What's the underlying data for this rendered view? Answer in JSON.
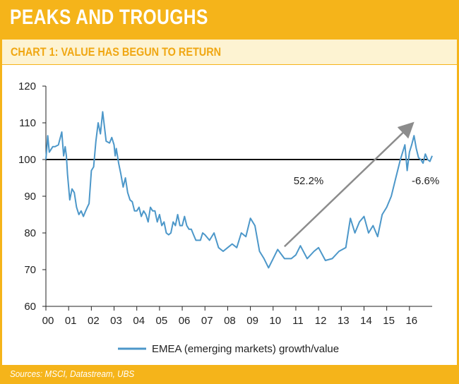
{
  "header": {
    "title": "PEAKS AND TROUGHS"
  },
  "subheader": {
    "title": "CHART 1: VALUE HAS BEGUN TO RETURN"
  },
  "footer": {
    "source": "Sources: MSCI, Datastream, UBS"
  },
  "colors": {
    "accent": "#f5b41a",
    "subheader_bg": "#fdf3d2",
    "subtitle": "#f0a712",
    "series": "#4c97c9",
    "arrow": "#8c8c8c",
    "reference": "#111111"
  },
  "chart_data": {
    "type": "line",
    "title": "CHART 1: VALUE HAS BEGUN TO RETURN",
    "xlabel": "",
    "ylabel": "",
    "xlim": [
      0,
      17
    ],
    "ylim": [
      60,
      120
    ],
    "x_ticks": [
      0,
      1,
      2,
      3,
      4,
      5,
      6,
      7,
      8,
      9,
      10,
      11,
      12,
      13,
      14,
      15,
      16
    ],
    "x_tick_labels": [
      "00",
      "01",
      "02",
      "03",
      "04",
      "05",
      "06",
      "07",
      "08",
      "09",
      "10",
      "11",
      "12",
      "13",
      "14",
      "15",
      "16"
    ],
    "y_ticks": [
      60,
      70,
      80,
      90,
      100,
      110,
      120
    ],
    "y_tick_labels": [
      "60",
      "70",
      "80",
      "90",
      "100",
      "110",
      "120"
    ],
    "grid": false,
    "reference_line": {
      "y": 100
    },
    "legend": {
      "position": "bottom-center",
      "entries": [
        "EMEA (emerging markets) growth/value"
      ]
    },
    "annotations": [
      {
        "text": "52.2%",
        "x": 10.9,
        "y": 93.3
      },
      {
        "text": "-6.6%",
        "x": 16.1,
        "y": 93.3
      }
    ],
    "arrow": {
      "from": [
        10.5,
        76.3
      ],
      "to": [
        16.1,
        109.6
      ]
    },
    "series": [
      {
        "name": "EMEA (emerging markets) growth/value",
        "x": [
          0,
          0.08,
          0.15,
          0.3,
          0.4,
          0.55,
          0.7,
          0.78,
          0.85,
          0.9,
          0.95,
          1.05,
          1.15,
          1.25,
          1.35,
          1.45,
          1.55,
          1.65,
          1.75,
          1.82,
          1.9,
          2.0,
          2.1,
          2.2,
          2.3,
          2.4,
          2.5,
          2.65,
          2.8,
          2.9,
          3.0,
          3.05,
          3.1,
          3.2,
          3.3,
          3.4,
          3.5,
          3.6,
          3.7,
          3.8,
          3.9,
          4.0,
          4.1,
          4.2,
          4.3,
          4.4,
          4.5,
          4.6,
          4.7,
          4.8,
          4.9,
          5.0,
          5.1,
          5.2,
          5.3,
          5.4,
          5.5,
          5.6,
          5.7,
          5.8,
          5.9,
          6.0,
          6.1,
          6.2,
          6.3,
          6.4,
          6.5,
          6.6,
          6.7,
          6.8,
          6.9,
          7.0,
          7.2,
          7.4,
          7.6,
          7.8,
          8.0,
          8.2,
          8.4,
          8.6,
          8.8,
          9.0,
          9.2,
          9.4,
          9.6,
          9.8,
          10.0,
          10.2,
          10.5,
          10.8,
          11.0,
          11.2,
          11.5,
          11.8,
          12.0,
          12.3,
          12.6,
          12.9,
          13.2,
          13.4,
          13.6,
          13.8,
          14.0,
          14.2,
          14.4,
          14.6,
          14.8,
          15.0,
          15.2,
          15.4,
          15.6,
          15.8,
          15.9,
          16.0,
          16.1,
          16.2,
          16.3,
          16.4,
          16.5,
          16.6,
          16.7,
          16.8,
          16.9,
          17.0
        ],
        "values": [
          100,
          106.5,
          102,
          103.5,
          103.5,
          104,
          107.5,
          101,
          103.5,
          101,
          96,
          89,
          92,
          91,
          87,
          85,
          86,
          84.5,
          86,
          87,
          88,
          97,
          98,
          105,
          110,
          107,
          113,
          105,
          104.5,
          106,
          104,
          101,
          103,
          99,
          96,
          92.5,
          95,
          91,
          89,
          88.5,
          86,
          86,
          87,
          84.5,
          86,
          85,
          83,
          87,
          86,
          86,
          83,
          85,
          82,
          83,
          80,
          79.5,
          80,
          83,
          82,
          85,
          82,
          82,
          84.5,
          82,
          81,
          81,
          79.5,
          78,
          78,
          78,
          80,
          79.5,
          78,
          80,
          76,
          75,
          76,
          77,
          76,
          80,
          79,
          84,
          82,
          75,
          73,
          70.5,
          73,
          75.5,
          73,
          73,
          74,
          76.5,
          73,
          75,
          76,
          72.5,
          73,
          75,
          76,
          84,
          80,
          83,
          84.5,
          80,
          82,
          79,
          85,
          87,
          90,
          95,
          100,
          104,
          97,
          102,
          104,
          106.5,
          103,
          100.5,
          100,
          99,
          101.5,
          100,
          99.5,
          101
        ]
      }
    ]
  }
}
